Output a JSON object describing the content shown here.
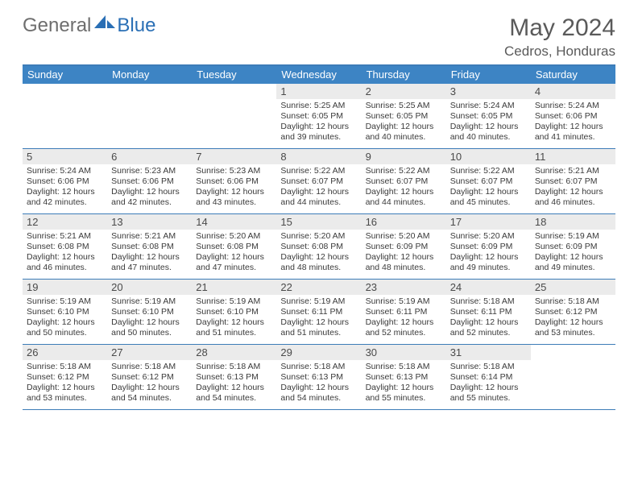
{
  "brand": {
    "general": "General",
    "blue": "Blue"
  },
  "title": "May 2024",
  "location": "Cedros, Honduras",
  "colors": {
    "header_bar": "#3d84c4",
    "border": "#3d7cb8",
    "daynum_bg": "#ebebeb",
    "text": "#3a3a3a",
    "logo_gray": "#6e6e6e",
    "logo_blue": "#2a6fb5"
  },
  "weekdays": [
    "Sunday",
    "Monday",
    "Tuesday",
    "Wednesday",
    "Thursday",
    "Friday",
    "Saturday"
  ],
  "weeks": [
    [
      {
        "n": "",
        "sr": "",
        "ss": "",
        "dl": ""
      },
      {
        "n": "",
        "sr": "",
        "ss": "",
        "dl": ""
      },
      {
        "n": "",
        "sr": "",
        "ss": "",
        "dl": ""
      },
      {
        "n": "1",
        "sr": "Sunrise: 5:25 AM",
        "ss": "Sunset: 6:05 PM",
        "dl": "Daylight: 12 hours and 39 minutes."
      },
      {
        "n": "2",
        "sr": "Sunrise: 5:25 AM",
        "ss": "Sunset: 6:05 PM",
        "dl": "Daylight: 12 hours and 40 minutes."
      },
      {
        "n": "3",
        "sr": "Sunrise: 5:24 AM",
        "ss": "Sunset: 6:05 PM",
        "dl": "Daylight: 12 hours and 40 minutes."
      },
      {
        "n": "4",
        "sr": "Sunrise: 5:24 AM",
        "ss": "Sunset: 6:06 PM",
        "dl": "Daylight: 12 hours and 41 minutes."
      }
    ],
    [
      {
        "n": "5",
        "sr": "Sunrise: 5:24 AM",
        "ss": "Sunset: 6:06 PM",
        "dl": "Daylight: 12 hours and 42 minutes."
      },
      {
        "n": "6",
        "sr": "Sunrise: 5:23 AM",
        "ss": "Sunset: 6:06 PM",
        "dl": "Daylight: 12 hours and 42 minutes."
      },
      {
        "n": "7",
        "sr": "Sunrise: 5:23 AM",
        "ss": "Sunset: 6:06 PM",
        "dl": "Daylight: 12 hours and 43 minutes."
      },
      {
        "n": "8",
        "sr": "Sunrise: 5:22 AM",
        "ss": "Sunset: 6:07 PM",
        "dl": "Daylight: 12 hours and 44 minutes."
      },
      {
        "n": "9",
        "sr": "Sunrise: 5:22 AM",
        "ss": "Sunset: 6:07 PM",
        "dl": "Daylight: 12 hours and 44 minutes."
      },
      {
        "n": "10",
        "sr": "Sunrise: 5:22 AM",
        "ss": "Sunset: 6:07 PM",
        "dl": "Daylight: 12 hours and 45 minutes."
      },
      {
        "n": "11",
        "sr": "Sunrise: 5:21 AM",
        "ss": "Sunset: 6:07 PM",
        "dl": "Daylight: 12 hours and 46 minutes."
      }
    ],
    [
      {
        "n": "12",
        "sr": "Sunrise: 5:21 AM",
        "ss": "Sunset: 6:08 PM",
        "dl": "Daylight: 12 hours and 46 minutes."
      },
      {
        "n": "13",
        "sr": "Sunrise: 5:21 AM",
        "ss": "Sunset: 6:08 PM",
        "dl": "Daylight: 12 hours and 47 minutes."
      },
      {
        "n": "14",
        "sr": "Sunrise: 5:20 AM",
        "ss": "Sunset: 6:08 PM",
        "dl": "Daylight: 12 hours and 47 minutes."
      },
      {
        "n": "15",
        "sr": "Sunrise: 5:20 AM",
        "ss": "Sunset: 6:08 PM",
        "dl": "Daylight: 12 hours and 48 minutes."
      },
      {
        "n": "16",
        "sr": "Sunrise: 5:20 AM",
        "ss": "Sunset: 6:09 PM",
        "dl": "Daylight: 12 hours and 48 minutes."
      },
      {
        "n": "17",
        "sr": "Sunrise: 5:20 AM",
        "ss": "Sunset: 6:09 PM",
        "dl": "Daylight: 12 hours and 49 minutes."
      },
      {
        "n": "18",
        "sr": "Sunrise: 5:19 AM",
        "ss": "Sunset: 6:09 PM",
        "dl": "Daylight: 12 hours and 49 minutes."
      }
    ],
    [
      {
        "n": "19",
        "sr": "Sunrise: 5:19 AM",
        "ss": "Sunset: 6:10 PM",
        "dl": "Daylight: 12 hours and 50 minutes."
      },
      {
        "n": "20",
        "sr": "Sunrise: 5:19 AM",
        "ss": "Sunset: 6:10 PM",
        "dl": "Daylight: 12 hours and 50 minutes."
      },
      {
        "n": "21",
        "sr": "Sunrise: 5:19 AM",
        "ss": "Sunset: 6:10 PM",
        "dl": "Daylight: 12 hours and 51 minutes."
      },
      {
        "n": "22",
        "sr": "Sunrise: 5:19 AM",
        "ss": "Sunset: 6:11 PM",
        "dl": "Daylight: 12 hours and 51 minutes."
      },
      {
        "n": "23",
        "sr": "Sunrise: 5:19 AM",
        "ss": "Sunset: 6:11 PM",
        "dl": "Daylight: 12 hours and 52 minutes."
      },
      {
        "n": "24",
        "sr": "Sunrise: 5:18 AM",
        "ss": "Sunset: 6:11 PM",
        "dl": "Daylight: 12 hours and 52 minutes."
      },
      {
        "n": "25",
        "sr": "Sunrise: 5:18 AM",
        "ss": "Sunset: 6:12 PM",
        "dl": "Daylight: 12 hours and 53 minutes."
      }
    ],
    [
      {
        "n": "26",
        "sr": "Sunrise: 5:18 AM",
        "ss": "Sunset: 6:12 PM",
        "dl": "Daylight: 12 hours and 53 minutes."
      },
      {
        "n": "27",
        "sr": "Sunrise: 5:18 AM",
        "ss": "Sunset: 6:12 PM",
        "dl": "Daylight: 12 hours and 54 minutes."
      },
      {
        "n": "28",
        "sr": "Sunrise: 5:18 AM",
        "ss": "Sunset: 6:13 PM",
        "dl": "Daylight: 12 hours and 54 minutes."
      },
      {
        "n": "29",
        "sr": "Sunrise: 5:18 AM",
        "ss": "Sunset: 6:13 PM",
        "dl": "Daylight: 12 hours and 54 minutes."
      },
      {
        "n": "30",
        "sr": "Sunrise: 5:18 AM",
        "ss": "Sunset: 6:13 PM",
        "dl": "Daylight: 12 hours and 55 minutes."
      },
      {
        "n": "31",
        "sr": "Sunrise: 5:18 AM",
        "ss": "Sunset: 6:14 PM",
        "dl": "Daylight: 12 hours and 55 minutes."
      },
      {
        "n": "",
        "sr": "",
        "ss": "",
        "dl": ""
      }
    ]
  ]
}
